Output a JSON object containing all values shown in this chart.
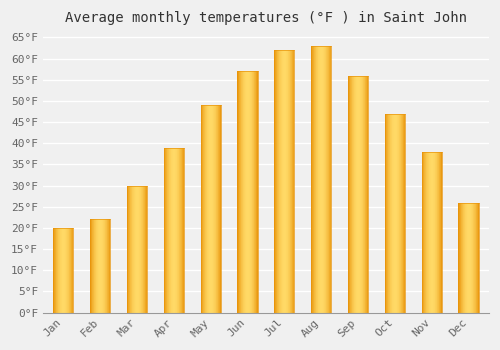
{
  "title": "Average monthly temperatures (°F ) in Saint John",
  "months": [
    "Jan",
    "Feb",
    "Mar",
    "Apr",
    "May",
    "Jun",
    "Jul",
    "Aug",
    "Sep",
    "Oct",
    "Nov",
    "Dec"
  ],
  "values": [
    20,
    22,
    30,
    39,
    49,
    57,
    62,
    63,
    56,
    47,
    38,
    26
  ],
  "bar_color_light": "#FFD966",
  "bar_color_mid": "#FFC125",
  "bar_color_dark": "#E8940A",
  "background_color": "#F0F0F0",
  "grid_color": "#FFFFFF",
  "ytick_min": 0,
  "ytick_max": 65,
  "ytick_step": 5,
  "title_fontsize": 10,
  "tick_fontsize": 8,
  "font_family": "monospace"
}
